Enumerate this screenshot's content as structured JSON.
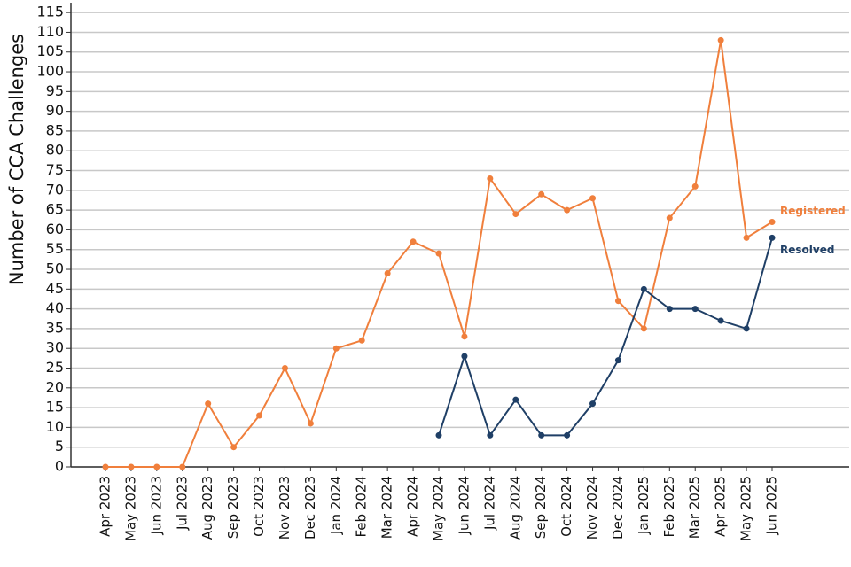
{
  "chart_data": {
    "type": "line",
    "y_label": "Number of CCA Challenges",
    "categories": [
      "Apr 2023",
      "May 2023",
      "Jun 2023",
      "Jul 2023",
      "Aug 2023",
      "Sep 2023",
      "Oct 2023",
      "Nov 2023",
      "Dec 2023",
      "Jan 2024",
      "Feb 2024",
      "Mar 2024",
      "Apr 2024",
      "May 2024",
      "Jun 2024",
      "Jul 2024",
      "Aug 2024",
      "Sep 2024",
      "Oct 2024",
      "Nov 2024",
      "Dec 2024",
      "Jan 2025",
      "Feb 2025",
      "Mar 2025",
      "Apr 2025",
      "May 2025",
      "Jun 2025"
    ],
    "series": [
      {
        "name": "Registered",
        "color": "#f07f3c",
        "values": [
          0,
          0,
          0,
          0,
          16,
          5,
          13,
          25,
          11,
          30,
          32,
          49,
          57,
          54,
          33,
          73,
          64,
          69,
          65,
          68,
          42,
          35,
          63,
          71,
          108,
          58,
          62
        ]
      },
      {
        "name": "Resolved",
        "color": "#1f3f66",
        "values": [
          null,
          null,
          null,
          null,
          null,
          null,
          null,
          null,
          null,
          null,
          null,
          null,
          null,
          8,
          28,
          8,
          17,
          8,
          8,
          16,
          27,
          45,
          40,
          40,
          37,
          35,
          58
        ]
      }
    ],
    "ylim": [
      0,
      117.5
    ],
    "yticks": [
      0,
      5,
      10,
      15,
      20,
      25,
      30,
      35,
      40,
      45,
      50,
      55,
      60,
      65,
      70,
      75,
      80,
      85,
      90,
      95,
      100,
      105,
      110,
      115
    ],
    "grid": true
  }
}
